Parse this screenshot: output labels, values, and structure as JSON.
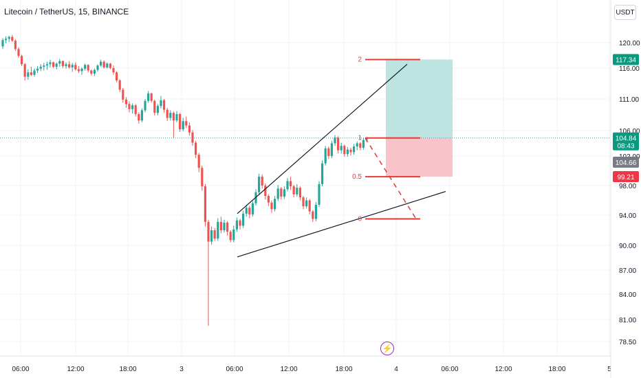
{
  "header": {
    "symbol_line": "Litecoin / TetherUS, 15, BINANCE",
    "currency_button": "USDT"
  },
  "colors": {
    "up": "#26a69a",
    "down": "#ef5350",
    "profit_zone": "#b2dfdb",
    "loss_zone": "#f7b8c0",
    "fib": "#e53935",
    "price_line": "#26a69a",
    "grid": "#f0f3fa"
  },
  "icons": {
    "flash": "flash-icon"
  },
  "chart_data": {
    "type": "candlestick",
    "y_ticks": [
      "120.00",
      "116.00",
      "111.00",
      "106.00",
      "102.00",
      "98.00",
      "94.00",
      "90.00",
      "87.00",
      "84.00",
      "81.00",
      "78.50"
    ],
    "x_ticks": [
      "06:00",
      "12:00",
      "18:00",
      "3",
      "06:00",
      "12:00",
      "18:00",
      "4",
      "06:00",
      "12:00",
      "18:00",
      "5"
    ],
    "grid": true,
    "price_labels": [
      {
        "text": "117.34",
        "color": "#089981"
      },
      {
        "text": "104.84",
        "sub": "08:43",
        "color": "#089981"
      },
      {
        "text": "104.66",
        "color": "#787b86"
      },
      {
        "text": "99.21",
        "color": "#f23645"
      }
    ],
    "fib_levels": [
      {
        "label": "2",
        "price": 117.34
      },
      {
        "label": "1",
        "price": 104.84
      },
      {
        "label": "0.5",
        "price": 99.2
      },
      {
        "label": "0",
        "price": 93.5
      }
    ],
    "position": {
      "entry": 104.84,
      "target": 117.34,
      "stop": 99.21
    },
    "current_price": 104.84,
    "upper_trendline": [
      94.2,
      116.6
    ],
    "lower_trendline": [
      88.6,
      97.2
    ],
    "candles": [
      [
        119.4,
        120.7,
        119.0,
        120.4
      ],
      [
        120.4,
        121.0,
        119.9,
        120.6
      ],
      [
        120.6,
        121.1,
        120.1,
        120.9
      ],
      [
        120.9,
        121.2,
        120.1,
        120.3
      ],
      [
        120.3,
        120.5,
        118.7,
        119.0
      ],
      [
        119.0,
        119.3,
        117.6,
        117.9
      ],
      [
        117.9,
        118.1,
        116.3,
        116.6
      ],
      [
        116.6,
        116.8,
        114.0,
        114.6
      ],
      [
        114.6,
        115.8,
        114.1,
        115.3
      ],
      [
        115.3,
        116.2,
        114.7,
        114.9
      ],
      [
        114.9,
        115.9,
        114.6,
        115.6
      ],
      [
        115.6,
        116.3,
        115.2,
        115.9
      ],
      [
        115.9,
        116.6,
        115.5,
        116.2
      ],
      [
        116.2,
        116.8,
        115.6,
        116.4
      ],
      [
        116.4,
        117.0,
        115.7,
        116.6
      ],
      [
        116.6,
        117.3,
        116.1,
        116.9
      ],
      [
        116.9,
        117.0,
        116.0,
        116.2
      ],
      [
        116.2,
        116.9,
        115.8,
        116.7
      ],
      [
        116.7,
        117.4,
        116.2,
        117.1
      ],
      [
        117.1,
        117.2,
        116.0,
        116.3
      ],
      [
        116.3,
        116.9,
        115.9,
        116.6
      ],
      [
        116.6,
        117.1,
        115.9,
        116.1
      ],
      [
        116.1,
        116.8,
        115.4,
        116.5
      ],
      [
        116.5,
        116.9,
        115.6,
        115.8
      ],
      [
        115.8,
        116.3,
        115.2,
        115.5
      ],
      [
        115.5,
        116.1,
        114.9,
        115.9
      ],
      [
        115.9,
        116.7,
        115.6,
        116.5
      ],
      [
        116.5,
        116.6,
        115.3,
        115.6
      ],
      [
        115.6,
        115.8,
        114.8,
        115.1
      ],
      [
        115.1,
        115.9,
        114.7,
        115.7
      ],
      [
        115.7,
        116.6,
        115.4,
        116.4
      ],
      [
        116.4,
        117.3,
        116.2,
        117.0
      ],
      [
        117.0,
        117.2,
        115.9,
        116.1
      ],
      [
        116.1,
        116.9,
        115.9,
        116.7
      ],
      [
        116.7,
        116.8,
        115.8,
        116.0
      ],
      [
        116.0,
        116.4,
        114.9,
        115.3
      ],
      [
        115.3,
        115.5,
        113.7,
        114.0
      ],
      [
        114.0,
        114.2,
        112.1,
        112.5
      ],
      [
        112.5,
        112.8,
        110.4,
        110.9
      ],
      [
        110.9,
        111.3,
        109.6,
        110.2
      ],
      [
        110.2,
        110.6,
        108.9,
        109.4
      ],
      [
        109.4,
        110.3,
        108.7,
        110.0
      ],
      [
        110.0,
        110.2,
        108.2,
        108.6
      ],
      [
        108.6,
        108.9,
        107.1,
        107.6
      ],
      [
        107.6,
        109.5,
        107.3,
        109.2
      ],
      [
        109.2,
        111.0,
        108.9,
        110.7
      ],
      [
        110.7,
        112.3,
        110.4,
        111.9
      ],
      [
        111.9,
        112.0,
        110.4,
        110.7
      ],
      [
        110.7,
        110.9,
        108.4,
        108.8
      ],
      [
        108.8,
        110.2,
        108.4,
        109.9
      ],
      [
        109.9,
        111.5,
        109.5,
        110.8
      ],
      [
        110.8,
        111.0,
        108.8,
        109.3
      ],
      [
        109.3,
        109.6,
        107.5,
        108.0
      ],
      [
        108.0,
        109.2,
        107.6,
        108.8
      ],
      [
        108.8,
        109.0,
        104.8,
        107.6
      ],
      [
        107.6,
        109.1,
        107.3,
        108.6
      ],
      [
        108.6,
        108.8,
        105.8,
        106.2
      ],
      [
        106.2,
        108.0,
        105.9,
        107.5
      ],
      [
        107.5,
        108.2,
        106.4,
        106.8
      ],
      [
        106.8,
        107.3,
        105.2,
        105.7
      ],
      [
        105.7,
        106.1,
        103.6,
        104.1
      ],
      [
        104.1,
        104.4,
        101.7,
        102.2
      ],
      [
        102.2,
        102.5,
        99.8,
        100.4
      ],
      [
        100.4,
        100.7,
        97.3,
        97.9
      ],
      [
        97.9,
        98.2,
        92.5,
        93.1
      ],
      [
        93.1,
        93.4,
        80.3,
        90.5
      ],
      [
        90.5,
        92.5,
        90.1,
        92.0
      ],
      [
        92.0,
        92.3,
        90.6,
        90.9
      ],
      [
        90.9,
        93.6,
        90.6,
        93.1
      ],
      [
        93.1,
        93.8,
        91.6,
        92.0
      ],
      [
        92.0,
        93.4,
        91.7,
        93.0
      ],
      [
        93.0,
        93.2,
        91.3,
        91.8
      ],
      [
        91.8,
        92.0,
        90.4,
        90.7
      ],
      [
        90.7,
        92.6,
        90.4,
        92.1
      ],
      [
        92.1,
        93.7,
        91.8,
        93.3
      ],
      [
        93.3,
        93.5,
        92.1,
        92.6
      ],
      [
        92.6,
        94.6,
        92.3,
        94.2
      ],
      [
        94.2,
        95.4,
        93.8,
        95.0
      ],
      [
        95.0,
        95.2,
        93.6,
        94.1
      ],
      [
        94.1,
        95.9,
        93.8,
        95.6
      ],
      [
        95.6,
        97.5,
        95.3,
        97.1
      ],
      [
        97.1,
        99.6,
        96.8,
        99.2
      ],
      [
        99.2,
        99.5,
        97.6,
        98.0
      ],
      [
        98.0,
        98.3,
        96.1,
        96.6
      ],
      [
        96.6,
        96.8,
        95.2,
        95.7
      ],
      [
        95.7,
        96.0,
        94.3,
        94.8
      ],
      [
        94.8,
        96.6,
        94.5,
        96.2
      ],
      [
        96.2,
        98.1,
        95.9,
        97.6
      ],
      [
        97.6,
        97.8,
        96.1,
        96.5
      ],
      [
        96.5,
        97.9,
        96.2,
        97.5
      ],
      [
        97.5,
        99.0,
        97.2,
        98.6
      ],
      [
        98.6,
        99.2,
        97.4,
        97.9
      ],
      [
        97.9,
        98.1,
        96.4,
        96.8
      ],
      [
        96.8,
        98.2,
        96.5,
        97.7
      ],
      [
        97.7,
        97.9,
        96.0,
        96.4
      ],
      [
        96.4,
        96.6,
        94.8,
        95.2
      ],
      [
        95.2,
        96.4,
        94.9,
        96.0
      ],
      [
        96.0,
        96.2,
        94.1,
        94.5
      ],
      [
        94.5,
        94.7,
        93.1,
        93.5
      ],
      [
        93.5,
        95.8,
        93.2,
        95.4
      ],
      [
        95.4,
        98.6,
        95.1,
        98.2
      ],
      [
        98.2,
        101.4,
        97.9,
        101.0
      ],
      [
        101.0,
        103.6,
        100.7,
        103.2
      ],
      [
        103.2,
        103.5,
        101.6,
        102.0
      ],
      [
        102.0,
        104.4,
        101.7,
        104.0
      ],
      [
        104.0,
        105.3,
        103.6,
        104.9
      ],
      [
        104.9,
        105.1,
        102.4,
        102.9
      ],
      [
        102.9,
        104.1,
        102.4,
        103.6
      ],
      [
        103.6,
        103.8,
        101.9,
        102.3
      ],
      [
        102.3,
        103.4,
        101.9,
        103.0
      ],
      [
        103.0,
        103.3,
        102.1,
        102.6
      ],
      [
        102.6,
        103.9,
        102.2,
        103.5
      ],
      [
        103.5,
        104.3,
        102.9,
        104.0
      ],
      [
        104.0,
        104.2,
        102.9,
        103.3
      ],
      [
        103.3,
        104.8,
        103.0,
        104.5
      ],
      [
        104.5,
        105.0,
        104.2,
        104.8
      ]
    ]
  }
}
